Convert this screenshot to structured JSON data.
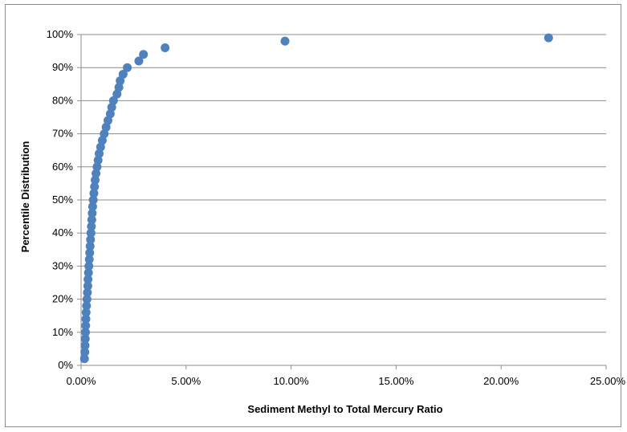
{
  "chart_data": {
    "type": "scatter",
    "title": "",
    "xlabel": "Sediment Methyl to Total Mercury Ratio",
    "ylabel": "Percentile Distribution",
    "xlim": [
      0,
      0.25
    ],
    "ylim": [
      0,
      1
    ],
    "x_ticks": [
      "0.00%",
      "5.00%",
      "10.00%",
      "15.00%",
      "20.00%",
      "25.00%"
    ],
    "y_ticks": [
      "0%",
      "10%",
      "20%",
      "30%",
      "40%",
      "50%",
      "60%",
      "70%",
      "80%",
      "90%",
      "100%"
    ],
    "grid": "horizontal",
    "legend": "none",
    "marker_color": "#4f81bd",
    "series": [
      {
        "points": [
          [
            0.0016,
            0.02
          ],
          [
            0.0018,
            0.04
          ],
          [
            0.0019,
            0.06
          ],
          [
            0.002,
            0.08
          ],
          [
            0.0021,
            0.1
          ],
          [
            0.0022,
            0.12
          ],
          [
            0.0023,
            0.14
          ],
          [
            0.0024,
            0.16
          ],
          [
            0.0026,
            0.18
          ],
          [
            0.0028,
            0.2
          ],
          [
            0.003,
            0.22
          ],
          [
            0.0032,
            0.24
          ],
          [
            0.0033,
            0.26
          ],
          [
            0.0035,
            0.28
          ],
          [
            0.0037,
            0.3
          ],
          [
            0.0039,
            0.32
          ],
          [
            0.0041,
            0.34
          ],
          [
            0.0043,
            0.36
          ],
          [
            0.0045,
            0.38
          ],
          [
            0.0047,
            0.4
          ],
          [
            0.0049,
            0.42
          ],
          [
            0.0051,
            0.44
          ],
          [
            0.0053,
            0.46
          ],
          [
            0.0055,
            0.48
          ],
          [
            0.0058,
            0.5
          ],
          [
            0.0061,
            0.52
          ],
          [
            0.0064,
            0.54
          ],
          [
            0.0067,
            0.56
          ],
          [
            0.0071,
            0.58
          ],
          [
            0.0076,
            0.6
          ],
          [
            0.0081,
            0.62
          ],
          [
            0.0086,
            0.64
          ],
          [
            0.0093,
            0.66
          ],
          [
            0.0101,
            0.68
          ],
          [
            0.011,
            0.7
          ],
          [
            0.0119,
            0.72
          ],
          [
            0.0128,
            0.74
          ],
          [
            0.0139,
            0.76
          ],
          [
            0.0146,
            0.78
          ],
          [
            0.0154,
            0.8
          ],
          [
            0.0171,
            0.82
          ],
          [
            0.018,
            0.84
          ],
          [
            0.0186,
            0.86
          ],
          [
            0.02,
            0.88
          ],
          [
            0.022,
            0.9
          ],
          [
            0.0275,
            0.92
          ],
          [
            0.0297,
            0.94
          ],
          [
            0.04,
            0.96
          ],
          [
            0.0971,
            0.98
          ],
          [
            0.2226,
            0.99
          ]
        ]
      }
    ]
  }
}
